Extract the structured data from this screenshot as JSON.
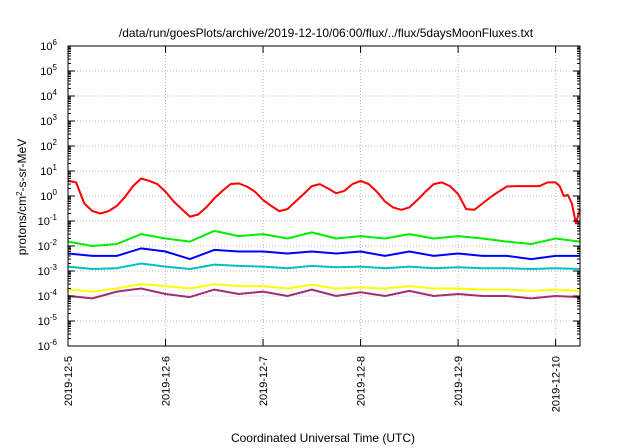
{
  "chart_data": {
    "type": "line",
    "title": "/data/run/goesPlots/archive/2019-12-10/06:00/flux/../flux/5daysMoonFluxes.txt",
    "xlabel": "Coordinated Universal Time (UTC)",
    "ylabel": {
      "prefix": "protons/cm",
      "superscript": "2",
      "suffix": "-s-sr-MeV"
    },
    "y_scale": "log",
    "y_ticks": [
      {
        "base": "10",
        "exp": "-6"
      },
      {
        "base": "10",
        "exp": "-5"
      },
      {
        "base": "10",
        "exp": "-4"
      },
      {
        "base": "10",
        "exp": "-3"
      },
      {
        "base": "10",
        "exp": "-2"
      },
      {
        "base": "10",
        "exp": "-1"
      },
      {
        "base": "10",
        "exp": "0"
      },
      {
        "base": "10",
        "exp": "1"
      },
      {
        "base": "10",
        "exp": "2"
      },
      {
        "base": "10",
        "exp": "3"
      },
      {
        "base": "10",
        "exp": "4"
      },
      {
        "base": "10",
        "exp": "5"
      },
      {
        "base": "10",
        "exp": "6"
      }
    ],
    "ylim": [
      1e-06,
      1000000.0
    ],
    "x_ticks": [
      "2019-12-5",
      "2019-12-6",
      "2019-12-7",
      "2019-12-8",
      "2019-12-9",
      "2019-12-10"
    ],
    "xlim": [
      "2019-12-05T00:00",
      "2019-12-10T06:00"
    ],
    "grid": true,
    "series": [
      {
        "color": "#ff0000",
        "x": [
          "2019-12-05T00:00",
          "2019-12-05T02:00",
          "2019-12-05T04:00",
          "2019-12-05T06:00",
          "2019-12-05T08:00",
          "2019-12-05T10:00",
          "2019-12-05T12:00",
          "2019-12-05T14:00",
          "2019-12-05T16:00",
          "2019-12-05T18:00",
          "2019-12-05T20:00",
          "2019-12-05T22:00",
          "2019-12-06T00:00",
          "2019-12-06T02:00",
          "2019-12-06T04:00",
          "2019-12-06T06:00",
          "2019-12-06T08:00",
          "2019-12-06T10:00",
          "2019-12-06T12:00",
          "2019-12-06T14:00",
          "2019-12-06T16:00",
          "2019-12-06T18:00",
          "2019-12-06T20:00",
          "2019-12-06T22:00",
          "2019-12-07T00:00",
          "2019-12-07T02:00",
          "2019-12-07T04:00",
          "2019-12-07T06:00",
          "2019-12-07T08:00",
          "2019-12-07T10:00",
          "2019-12-07T12:00",
          "2019-12-07T14:00",
          "2019-12-07T16:00",
          "2019-12-07T18:00",
          "2019-12-07T20:00",
          "2019-12-07T22:00",
          "2019-12-08T00:00",
          "2019-12-08T02:00",
          "2019-12-08T04:00",
          "2019-12-08T06:00",
          "2019-12-08T08:00",
          "2019-12-08T10:00",
          "2019-12-08T12:00",
          "2019-12-08T14:00",
          "2019-12-08T16:00",
          "2019-12-08T18:00",
          "2019-12-08T20:00",
          "2019-12-08T22:00",
          "2019-12-09T00:00",
          "2019-12-09T02:00",
          "2019-12-09T04:00",
          "2019-12-09T06:00",
          "2019-12-09T08:00",
          "2019-12-09T10:00",
          "2019-12-09T12:00",
          "2019-12-09T14:00",
          "2019-12-09T16:00",
          "2019-12-09T18:00",
          "2019-12-09T20:00",
          "2019-12-09T22:00",
          "2019-12-10T00:00",
          "2019-12-10T01:00",
          "2019-12-10T02:00",
          "2019-12-10T03:00",
          "2019-12-10T04:00",
          "2019-12-10T05:00",
          "2019-12-10T06:00"
        ],
        "values": [
          4,
          3.5,
          0.5,
          0.25,
          0.2,
          0.25,
          0.4,
          0.9,
          2.5,
          5,
          4,
          3,
          1.5,
          0.6,
          0.3,
          0.15,
          0.18,
          0.35,
          0.8,
          1.6,
          3,
          3.2,
          2.4,
          1.5,
          0.7,
          0.4,
          0.25,
          0.3,
          0.6,
          1.2,
          2.5,
          3,
          2,
          1.3,
          1.6,
          3,
          4,
          3,
          1.5,
          0.6,
          0.35,
          0.28,
          0.35,
          0.7,
          1.5,
          3,
          3.5,
          2.5,
          1.2,
          0.3,
          0.28,
          0.5,
          0.9,
          1.5,
          2.4,
          2.5,
          2.5,
          2.5,
          2.5,
          3.5,
          3.5,
          2.5,
          1,
          1.1,
          0.5,
          0.08,
          0.3
        ]
      },
      {
        "color": "#00ee00",
        "x": [
          "2019-12-05T00:00",
          "2019-12-05T06:00",
          "2019-12-05T12:00",
          "2019-12-05T18:00",
          "2019-12-06T00:00",
          "2019-12-06T06:00",
          "2019-12-06T12:00",
          "2019-12-06T18:00",
          "2019-12-07T00:00",
          "2019-12-07T06:00",
          "2019-12-07T12:00",
          "2019-12-07T18:00",
          "2019-12-08T00:00",
          "2019-12-08T06:00",
          "2019-12-08T12:00",
          "2019-12-08T18:00",
          "2019-12-09T00:00",
          "2019-12-09T06:00",
          "2019-12-09T12:00",
          "2019-12-09T18:00",
          "2019-12-10T00:00",
          "2019-12-10T06:00"
        ],
        "values": [
          0.015,
          0.01,
          0.012,
          0.03,
          0.02,
          0.015,
          0.04,
          0.025,
          0.03,
          0.02,
          0.035,
          0.02,
          0.025,
          0.02,
          0.03,
          0.02,
          0.025,
          0.02,
          0.015,
          0.012,
          0.02,
          0.015
        ]
      },
      {
        "color": "#0000ff",
        "x": [
          "2019-12-05T00:00",
          "2019-12-05T06:00",
          "2019-12-05T12:00",
          "2019-12-05T18:00",
          "2019-12-06T00:00",
          "2019-12-06T06:00",
          "2019-12-06T12:00",
          "2019-12-06T18:00",
          "2019-12-07T00:00",
          "2019-12-07T06:00",
          "2019-12-07T12:00",
          "2019-12-07T18:00",
          "2019-12-08T00:00",
          "2019-12-08T06:00",
          "2019-12-08T12:00",
          "2019-12-08T18:00",
          "2019-12-09T00:00",
          "2019-12-09T06:00",
          "2019-12-09T12:00",
          "2019-12-09T18:00",
          "2019-12-10T00:00",
          "2019-12-10T06:00"
        ],
        "values": [
          0.005,
          0.004,
          0.004,
          0.008,
          0.006,
          0.003,
          0.007,
          0.006,
          0.006,
          0.005,
          0.006,
          0.005,
          0.006,
          0.004,
          0.006,
          0.004,
          0.005,
          0.004,
          0.004,
          0.003,
          0.004,
          0.004
        ]
      },
      {
        "color": "#00c0c0",
        "x": [
          "2019-12-05T00:00",
          "2019-12-05T06:00",
          "2019-12-05T12:00",
          "2019-12-05T18:00",
          "2019-12-06T00:00",
          "2019-12-06T06:00",
          "2019-12-06T12:00",
          "2019-12-06T18:00",
          "2019-12-07T00:00",
          "2019-12-07T06:00",
          "2019-12-07T12:00",
          "2019-12-07T18:00",
          "2019-12-08T00:00",
          "2019-12-08T06:00",
          "2019-12-08T12:00",
          "2019-12-08T18:00",
          "2019-12-09T00:00",
          "2019-12-09T06:00",
          "2019-12-09T12:00",
          "2019-12-09T18:00",
          "2019-12-10T00:00",
          "2019-12-10T06:00"
        ],
        "values": [
          0.0015,
          0.0012,
          0.0013,
          0.002,
          0.0015,
          0.0012,
          0.0018,
          0.0016,
          0.0015,
          0.0013,
          0.0016,
          0.0014,
          0.0015,
          0.0013,
          0.0015,
          0.0013,
          0.0014,
          0.0013,
          0.0013,
          0.0012,
          0.0013,
          0.0012
        ]
      },
      {
        "color": "#ffff00",
        "x": [
          "2019-12-05T00:00",
          "2019-12-05T06:00",
          "2019-12-05T12:00",
          "2019-12-05T18:00",
          "2019-12-06T00:00",
          "2019-12-06T06:00",
          "2019-12-06T12:00",
          "2019-12-06T18:00",
          "2019-12-07T00:00",
          "2019-12-07T06:00",
          "2019-12-07T12:00",
          "2019-12-07T18:00",
          "2019-12-08T00:00",
          "2019-12-08T06:00",
          "2019-12-08T12:00",
          "2019-12-08T18:00",
          "2019-12-09T00:00",
          "2019-12-09T06:00",
          "2019-12-09T12:00",
          "2019-12-09T18:00",
          "2019-12-10T00:00",
          "2019-12-10T06:00"
        ],
        "values": [
          0.00018,
          0.00015,
          0.0002,
          0.0003,
          0.00025,
          0.0002,
          0.0003,
          0.00025,
          0.00025,
          0.0002,
          0.00028,
          0.0002,
          0.00022,
          0.0002,
          0.00025,
          0.0002,
          0.0002,
          0.00018,
          0.00018,
          0.00016,
          0.00018,
          0.00016
        ]
      },
      {
        "color": "#a03070",
        "x": [
          "2019-12-05T00:00",
          "2019-12-05T06:00",
          "2019-12-05T12:00",
          "2019-12-05T18:00",
          "2019-12-06T00:00",
          "2019-12-06T06:00",
          "2019-12-06T12:00",
          "2019-12-06T18:00",
          "2019-12-07T00:00",
          "2019-12-07T06:00",
          "2019-12-07T12:00",
          "2019-12-07T18:00",
          "2019-12-08T00:00",
          "2019-12-08T06:00",
          "2019-12-08T12:00",
          "2019-12-08T18:00",
          "2019-12-09T00:00",
          "2019-12-09T06:00",
          "2019-12-09T12:00",
          "2019-12-09T18:00",
          "2019-12-10T00:00",
          "2019-12-10T06:00"
        ],
        "values": [
          0.0001,
          8e-05,
          0.00015,
          0.0002,
          0.00012,
          9e-05,
          0.00018,
          0.00012,
          0.00015,
          0.0001,
          0.00018,
          0.0001,
          0.00014,
          0.0001,
          0.00016,
          0.0001,
          0.00012,
          0.0001,
          0.0001,
          8e-05,
          0.0001,
          9e-05
        ]
      }
    ]
  }
}
